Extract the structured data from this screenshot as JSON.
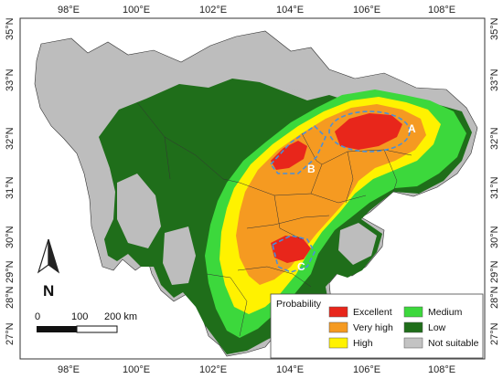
{
  "axes": {
    "top_lon": [
      "98°E",
      "100°E",
      "102°E",
      "104°E",
      "106°E",
      "108°E"
    ],
    "bottom_lon": [
      "98°E",
      "100°E",
      "102°E",
      "104°E",
      "106°E",
      "108°E"
    ],
    "left_lat": [
      "35°N",
      "33°N",
      "32°N",
      "31°N",
      "30°N",
      "29°N",
      "28°N",
      "27°N"
    ],
    "right_lat": [
      "35°N",
      "33°N",
      "32°N",
      "31°N",
      "30°N",
      "29°N",
      "28°N",
      "27°N"
    ]
  },
  "north_label": "N",
  "scale": {
    "labels": [
      "0",
      "100",
      "200 km"
    ]
  },
  "subregions": [
    "A",
    "B",
    "C"
  ],
  "legend": {
    "title": "Probability",
    "items": [
      {
        "label": "Excellent",
        "color": "#e8261b"
      },
      {
        "label": "Medium",
        "color": "#3cd83c"
      },
      {
        "label": "Very high",
        "color": "#f59a21"
      },
      {
        "label": "Low",
        "color": "#1f6e1a"
      },
      {
        "label": "High",
        "color": "#fff200"
      },
      {
        "label": "Not suitable",
        "color": "#c3c3c3"
      }
    ]
  }
}
